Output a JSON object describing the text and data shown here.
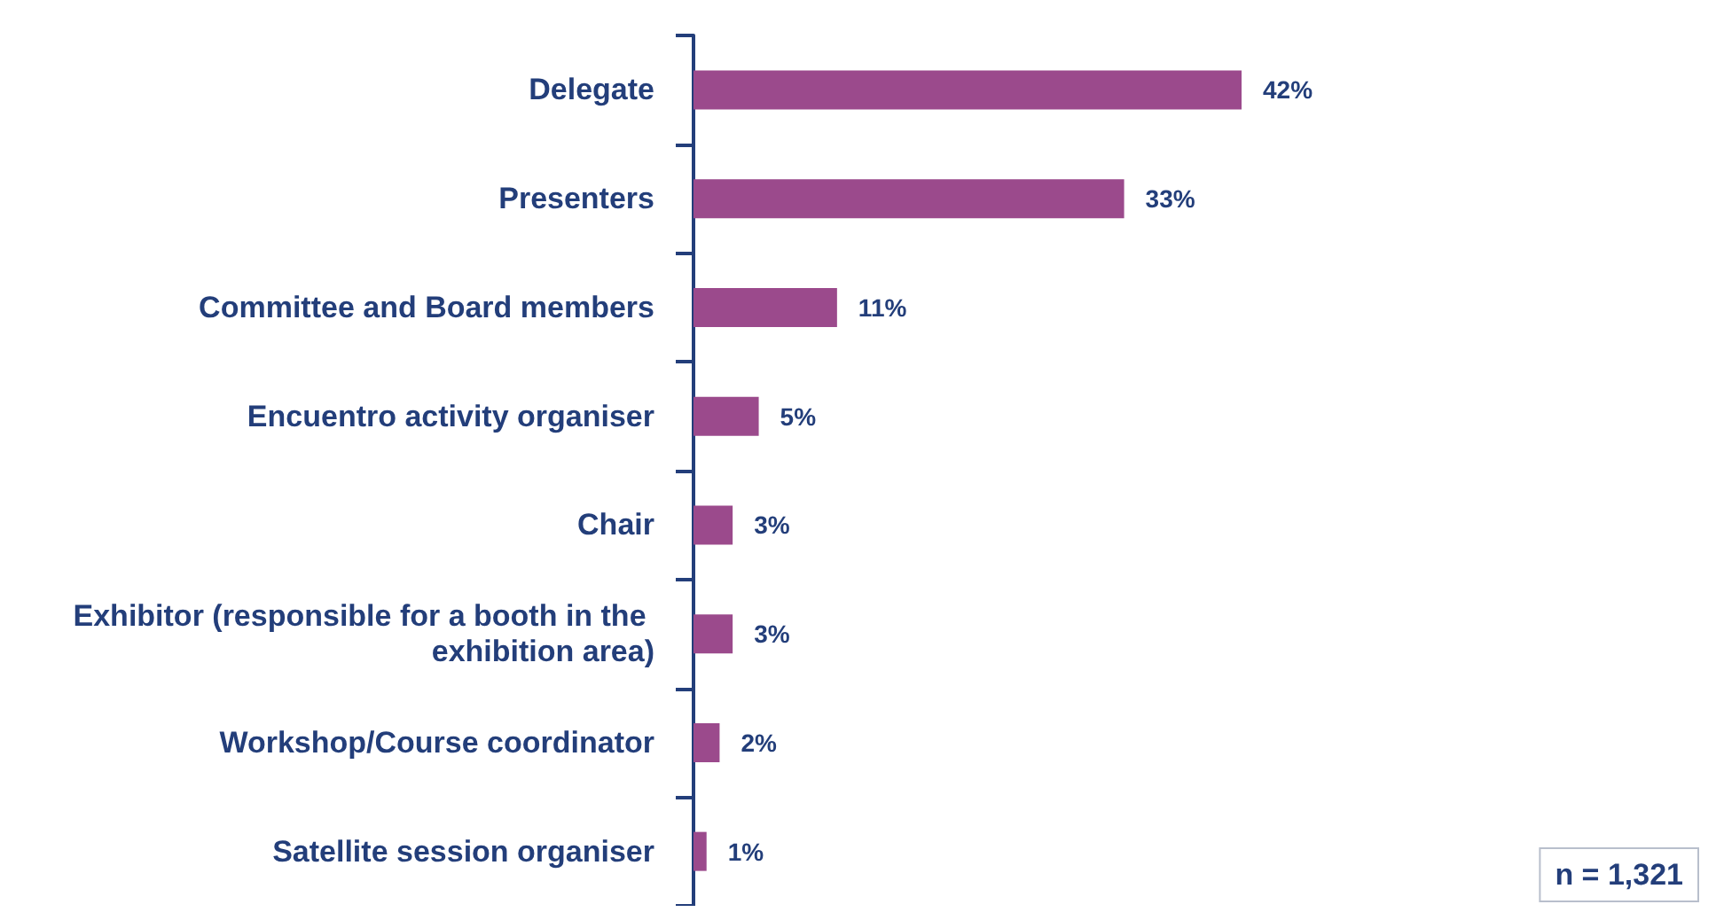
{
  "chart_data": {
    "type": "bar",
    "orientation": "horizontal",
    "categories": [
      "Delegate",
      "Presenters",
      "Committee and Board members",
      "Encuentro activity organiser",
      "Chair",
      "Exhibitor (responsible for a booth in the exhibition area)",
      "Workshop/Course coordinator",
      "Satellite session organiser"
    ],
    "values": [
      42,
      33,
      11,
      5,
      3,
      3,
      2,
      1
    ],
    "value_labels": [
      "42%",
      "33%",
      "11%",
      "5%",
      "3%",
      "3%",
      "2%",
      "1%"
    ],
    "color": "#9b4a8c",
    "tick_labels": "y",
    "grid": false,
    "annotations": [
      "n = 1,321"
    ]
  }
}
